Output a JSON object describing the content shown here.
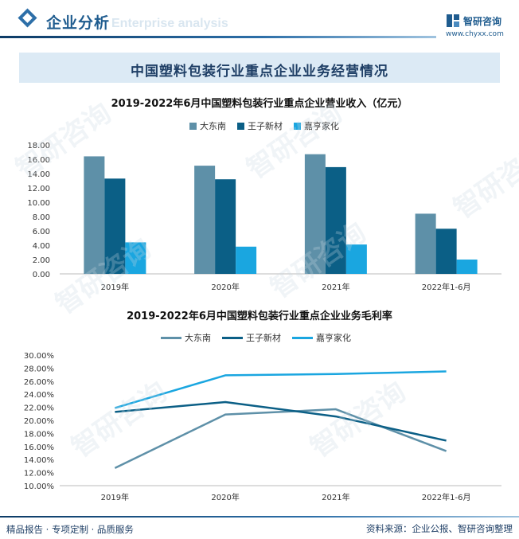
{
  "header": {
    "section_title": "企业分析",
    "watermark_en": "Enterprise analysis",
    "logo_name": "智研咨询",
    "logo_url": "www.chyxx.com"
  },
  "banner": {
    "title": "中国塑料包装行业重点企业业务经营情况"
  },
  "colors": {
    "dadongnan": "#5e90a8",
    "wangzi": "#0b5f86",
    "jiaheng": "#1aa6e0"
  },
  "chart_data": [
    {
      "type": "bar",
      "title": "2019-2022年6月中国塑料包装行业重点企业营业收入（亿元）",
      "categories": [
        "2019年",
        "2020年",
        "2021年",
        "2022年1-6月"
      ],
      "series": [
        {
          "name": "大东南",
          "values": [
            16.4,
            15.1,
            16.7,
            8.4
          ]
        },
        {
          "name": "王子新材",
          "values": [
            13.3,
            13.2,
            14.9,
            6.3
          ]
        },
        {
          "name": "嘉亨家化",
          "values": [
            4.4,
            3.8,
            4.1,
            2.0
          ]
        }
      ],
      "y_ticks": [
        "0.00",
        "2.00",
        "4.00",
        "6.00",
        "8.00",
        "10.00",
        "12.00",
        "14.00",
        "16.00",
        "18.00"
      ],
      "ylim": [
        0,
        18
      ],
      "xlabel": "",
      "ylabel": ""
    },
    {
      "type": "line",
      "title": "2019-2022年6月中国塑料包装行业重点企业业务毛利率",
      "categories": [
        "2019年",
        "2020年",
        "2021年",
        "2022年1-6月"
      ],
      "series": [
        {
          "name": "大东南",
          "values": [
            12.7,
            20.9,
            21.7,
            15.3
          ]
        },
        {
          "name": "王子新材",
          "values": [
            21.3,
            22.8,
            20.6,
            16.9
          ]
        },
        {
          "name": "嘉亨家化",
          "values": [
            21.9,
            26.9,
            27.1,
            27.5
          ]
        }
      ],
      "y_ticks": [
        "10.00%",
        "12.00%",
        "14.00%",
        "16.00%",
        "18.00%",
        "20.00%",
        "22.00%",
        "24.00%",
        "26.00%",
        "28.00%",
        "30.00%"
      ],
      "ylim": [
        10,
        30
      ],
      "xlabel": "",
      "ylabel": ""
    }
  ],
  "footer": {
    "left": "精品报告 · 专项定制 · 品质服务",
    "right": "资料来源：企业公报、智研咨询整理"
  },
  "watermark": "智研咨询"
}
